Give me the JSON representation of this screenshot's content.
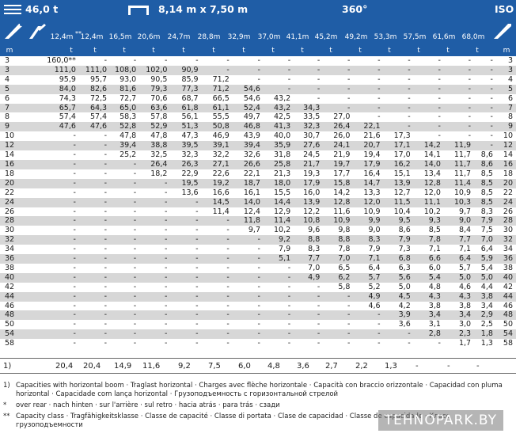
{
  "header": {
    "weight": "46,0 t",
    "dimensions": "8,14 m x 7,50 m",
    "rotation": "360°",
    "norm": "ISO"
  },
  "booms": [
    "12,4m",
    "12,4m",
    "16,5m",
    "20,6m",
    "24,7m",
    "28,8m",
    "32,9m",
    "37,0m",
    "41,1m",
    "45,2m",
    "49,2m",
    "53,3m",
    "57,5m",
    "61,6m",
    "68,0m"
  ],
  "first_boom_marker": "**",
  "units": {
    "radius": "m",
    "capacity": "t"
  },
  "rows": [
    {
      "r": "3",
      "v": [
        "160,0**",
        "-",
        "-",
        "-",
        "-",
        "-",
        "-",
        "-",
        "-",
        "-",
        "-",
        "-",
        "-",
        "-",
        "-"
      ]
    },
    {
      "r": "3",
      "v": [
        "111,0",
        "111,0",
        "108,0",
        "102,0",
        "90,9",
        "-",
        "-",
        "-",
        "-",
        "-",
        "-",
        "-",
        "-",
        "-",
        "-"
      ]
    },
    {
      "r": "4",
      "v": [
        "95,9",
        "95,7",
        "93,0",
        "90,5",
        "85,9",
        "71,2",
        "-",
        "-",
        "-",
        "-",
        "-",
        "-",
        "-",
        "-",
        "-"
      ]
    },
    {
      "r": "5",
      "v": [
        "84,0",
        "82,6",
        "81,6",
        "79,3",
        "77,3",
        "71,2",
        "54,6",
        "-",
        "-",
        "-",
        "-",
        "-",
        "-",
        "-",
        "-"
      ]
    },
    {
      "r": "6",
      "v": [
        "74,3",
        "72,5",
        "72,7",
        "70,6",
        "68,7",
        "66,5",
        "54,6",
        "43,2",
        "-",
        "-",
        "-",
        "-",
        "-",
        "-",
        "-"
      ]
    },
    {
      "r": "7",
      "v": [
        "65,7",
        "64,3",
        "65,0",
        "63,6",
        "61,8",
        "61,1",
        "52,4",
        "43,2",
        "34,3",
        "-",
        "-",
        "-",
        "-",
        "-",
        "-"
      ]
    },
    {
      "r": "8",
      "v": [
        "57,4",
        "57,4",
        "58,3",
        "57,8",
        "56,1",
        "55,5",
        "49,7",
        "42,5",
        "33,5",
        "27,0",
        "-",
        "-",
        "-",
        "-",
        "-"
      ]
    },
    {
      "r": "9",
      "v": [
        "47,6",
        "47,6",
        "52,8",
        "52,9",
        "51,3",
        "50,8",
        "46,8",
        "41,3",
        "32,3",
        "26,4",
        "22,1",
        "-",
        "-",
        "-",
        "-"
      ]
    },
    {
      "r": "10",
      "v": [
        "-",
        "-",
        "47,8",
        "47,8",
        "47,3",
        "46,9",
        "43,9",
        "40,0",
        "30,7",
        "26,0",
        "21,6",
        "17,3",
        "-",
        "-",
        "-"
      ]
    },
    {
      "r": "12",
      "v": [
        "-",
        "-",
        "39,4",
        "38,8",
        "39,5",
        "39,1",
        "39,4",
        "35,9",
        "27,6",
        "24,1",
        "20,7",
        "17,1",
        "14,2",
        "11,9",
        "-"
      ]
    },
    {
      "r": "14",
      "v": [
        "-",
        "-",
        "25,2",
        "32,5",
        "32,3",
        "32,2",
        "32,6",
        "31,8",
        "24,5",
        "21,9",
        "19,4",
        "17,0",
        "14,1",
        "11,7",
        "8,6"
      ]
    },
    {
      "r": "16",
      "v": [
        "-",
        "-",
        "-",
        "26,4",
        "26,3",
        "27,1",
        "26,6",
        "25,8",
        "21,7",
        "19,7",
        "17,9",
        "16,2",
        "14,0",
        "11,7",
        "8,6"
      ]
    },
    {
      "r": "18",
      "v": [
        "-",
        "-",
        "-",
        "18,2",
        "22,9",
        "22,6",
        "22,1",
        "21,3",
        "19,3",
        "17,7",
        "16,4",
        "15,1",
        "13,4",
        "11,7",
        "8,5"
      ]
    },
    {
      "r": "20",
      "v": [
        "-",
        "-",
        "-",
        "-",
        "19,5",
        "19,2",
        "18,7",
        "18,0",
        "17,9",
        "15,8",
        "14,7",
        "13,9",
        "12,8",
        "11,4",
        "8,5"
      ]
    },
    {
      "r": "22",
      "v": [
        "-",
        "-",
        "-",
        "-",
        "13,6",
        "16,6",
        "16,1",
        "15,5",
        "16,0",
        "14,2",
        "13,3",
        "12,7",
        "12,0",
        "10,9",
        "8,5"
      ]
    },
    {
      "r": "24",
      "v": [
        "-",
        "-",
        "-",
        "-",
        "-",
        "14,5",
        "14,0",
        "14,4",
        "13,9",
        "12,8",
        "12,0",
        "11,5",
        "11,1",
        "10,3",
        "8,5"
      ]
    },
    {
      "r": "26",
      "v": [
        "-",
        "-",
        "-",
        "-",
        "-",
        "11,4",
        "12,4",
        "12,9",
        "12,2",
        "11,6",
        "10,9",
        "10,4",
        "10,2",
        "9,7",
        "8,3"
      ]
    },
    {
      "r": "28",
      "v": [
        "-",
        "-",
        "-",
        "-",
        "-",
        "-",
        "11,8",
        "11,4",
        "10,8",
        "10,9",
        "9,9",
        "9,5",
        "9,3",
        "9,0",
        "7,9"
      ]
    },
    {
      "r": "30",
      "v": [
        "-",
        "-",
        "-",
        "-",
        "-",
        "-",
        "9,7",
        "10,2",
        "9,6",
        "9,8",
        "9,0",
        "8,6",
        "8,5",
        "8,4",
        "7,5"
      ]
    },
    {
      "r": "32",
      "v": [
        "-",
        "-",
        "-",
        "-",
        "-",
        "-",
        "-",
        "9,2",
        "8,8",
        "8,8",
        "8,3",
        "7,9",
        "7,8",
        "7,7",
        "7,0"
      ]
    },
    {
      "r": "34",
      "v": [
        "-",
        "-",
        "-",
        "-",
        "-",
        "-",
        "-",
        "7,9",
        "8,3",
        "7,8",
        "7,9",
        "7,3",
        "7,1",
        "7,1",
        "6,4"
      ]
    },
    {
      "r": "36",
      "v": [
        "-",
        "-",
        "-",
        "-",
        "-",
        "-",
        "-",
        "5,1",
        "7,7",
        "7,0",
        "7,1",
        "6,8",
        "6,6",
        "6,4",
        "5,9"
      ]
    },
    {
      "r": "38",
      "v": [
        "-",
        "-",
        "-",
        "-",
        "-",
        "-",
        "-",
        "-",
        "7,0",
        "6,5",
        "6,4",
        "6,3",
        "6,0",
        "5,7",
        "5,4"
      ]
    },
    {
      "r": "40",
      "v": [
        "-",
        "-",
        "-",
        "-",
        "-",
        "-",
        "-",
        "-",
        "4,9",
        "6,2",
        "5,7",
        "5,6",
        "5,4",
        "5,0",
        "5,0"
      ]
    },
    {
      "r": "42",
      "v": [
        "-",
        "-",
        "-",
        "-",
        "-",
        "-",
        "-",
        "-",
        "-",
        "5,8",
        "5,2",
        "5,0",
        "4,8",
        "4,6",
        "4,4"
      ]
    },
    {
      "r": "44",
      "v": [
        "-",
        "-",
        "-",
        "-",
        "-",
        "-",
        "-",
        "-",
        "-",
        "-",
        "4,9",
        "4,5",
        "4,3",
        "4,3",
        "3,8"
      ]
    },
    {
      "r": "46",
      "v": [
        "-",
        "-",
        "-",
        "-",
        "-",
        "-",
        "-",
        "-",
        "-",
        "-",
        "4,6",
        "4,2",
        "3,8",
        "3,8",
        "3,4"
      ]
    },
    {
      "r": "48",
      "v": [
        "-",
        "-",
        "-",
        "-",
        "-",
        "-",
        "-",
        "-",
        "-",
        "-",
        "-",
        "3,9",
        "3,4",
        "3,4",
        "2,9"
      ]
    },
    {
      "r": "50",
      "v": [
        "-",
        "-",
        "-",
        "-",
        "-",
        "-",
        "-",
        "-",
        "-",
        "-",
        "-",
        "3,6",
        "3,1",
        "3,0",
        "2,5"
      ]
    },
    {
      "r": "54",
      "v": [
        "-",
        "-",
        "-",
        "-",
        "-",
        "-",
        "-",
        "-",
        "-",
        "-",
        "-",
        "-",
        "2,8",
        "2,3",
        "1,8"
      ]
    },
    {
      "r": "58",
      "v": [
        "-",
        "-",
        "-",
        "-",
        "-",
        "-",
        "-",
        "-",
        "-",
        "-",
        "-",
        "-",
        "-",
        "1,7",
        "1,3"
      ]
    }
  ],
  "footer": {
    "label": "1)",
    "values": [
      "20,4",
      "20,4",
      "14,9",
      "11,6",
      "9,2",
      "7,5",
      "6,0",
      "4,8",
      "3,6",
      "2,7",
      "2,2",
      "1,3",
      "-",
      "-",
      "-"
    ]
  },
  "notes": [
    {
      "mark": "1)",
      "text": "Capacities with horizontal boom · Traglast horizontal · Charges avec flèche horizontale · Capacità con braccio orizzontale · Capacidad con pluma horizontal · Capacidade com lança horizontal · Грузоподъемность с горизонтальной стрелой"
    },
    {
      "mark": "*",
      "text": "over rear · nach hinten · sur l'arrière · sul retro · hacia atrás · para trás · сзади"
    },
    {
      "mark": "**",
      "text": "Capacity class · Tragfähigkeitsklasse · Classe de capacité · Classe di portata · Clase de capacidad · Classe de capacidade · Класс грузоподъемности"
    }
  ],
  "watermark": "TEHNOPARK.BY"
}
